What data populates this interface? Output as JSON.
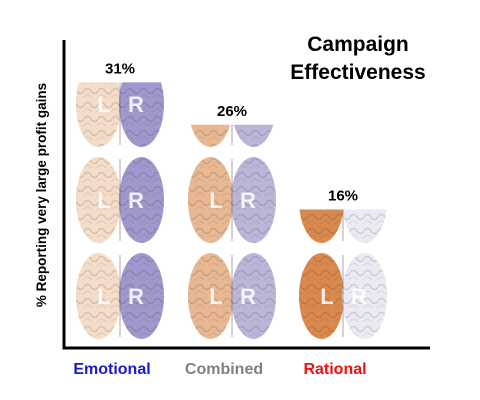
{
  "chart_data": {
    "type": "bar",
    "title_lines": [
      "Campaign",
      "Effectiveness"
    ],
    "ylabel": "% Reporting very large profit gains",
    "xlabel": "",
    "categories": [
      "Emotional",
      "Combined",
      "Rational"
    ],
    "category_colors": [
      "#1a1acc",
      "#808080",
      "#ee1111"
    ],
    "values": [
      31,
      26,
      16
    ],
    "value_labels": [
      "31%",
      "26%",
      "16%"
    ],
    "ylim": [
      0,
      34
    ],
    "grid": false,
    "legend": "none",
    "mark_style": "stacked brain pictograms, left hemisphere L and right hemisphere R",
    "hemisphere_letters": [
      "L",
      "R"
    ],
    "brain_colors": {
      "Emotional": {
        "left": "#f3dcc8",
        "right": "#9f98cc"
      },
      "Combined": {
        "left": "#e8b892",
        "right": "#bcb5d8"
      },
      "Rational": {
        "left": "#d9894e",
        "right": "#ebe9f1"
      }
    }
  }
}
